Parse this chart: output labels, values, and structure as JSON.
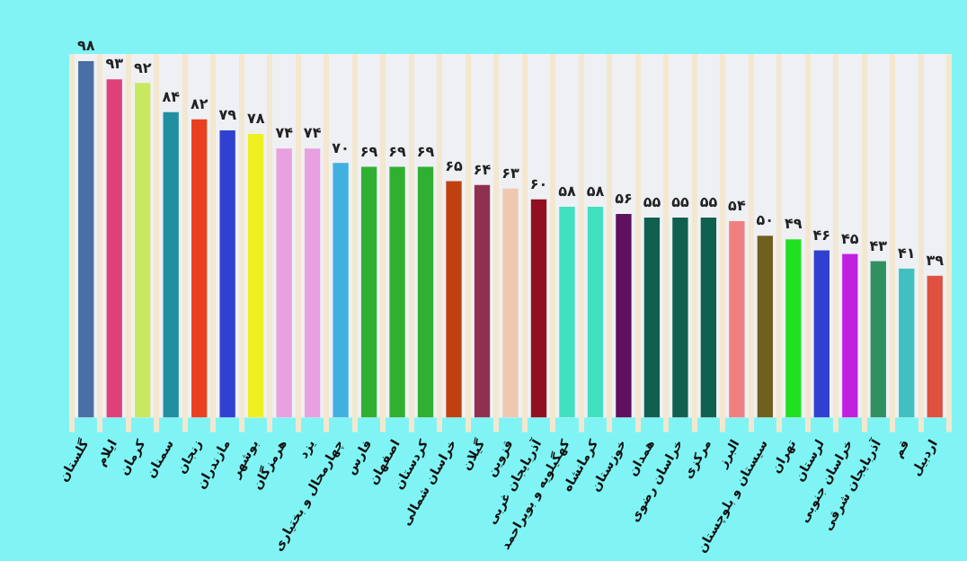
{
  "chart_data": {
    "type": "bar",
    "categories": [
      "گلستان",
      "ایلام",
      "کرمان",
      "سمنان",
      "زنجان",
      "مازندران",
      "بوشهر",
      "هرمزگان",
      "یزد",
      "چهارمحال و بختیاری",
      "فارس",
      "اصفهان",
      "کردستان",
      "خراسان شمالی",
      "گیلان",
      "قزوین",
      "آذربایجان غربی",
      "کهگیلویه و بویراحمد",
      "کرمانشاه",
      "خوزستان",
      "همدان",
      "خراسان رضوی",
      "مرکزی",
      "البرز",
      "سیستان و بلوچستان",
      "تهران",
      "لرستان",
      "خراسان جنوبی",
      "آذربایجان شرقی",
      "قم",
      "اردبیل"
    ],
    "values": [
      98,
      93,
      92,
      84,
      82,
      79,
      78,
      74,
      74,
      70,
      69,
      69,
      69,
      65,
      64,
      63,
      60,
      58,
      58,
      56,
      55,
      55,
      55,
      54,
      50,
      49,
      46,
      45,
      43,
      41,
      39
    ],
    "value_labels": [
      "۹۸",
      "۹۳",
      "۹۲",
      "۸۴",
      "۸۲",
      "۷۹",
      "۷۸",
      "۷۴",
      "۷۴",
      "۷۰",
      "۶۹",
      "۶۹",
      "۶۹",
      "۶۵",
      "۶۴",
      "۶۳",
      "۶۰",
      "۵۸",
      "۵۸",
      "۵۶",
      "۵۵",
      "۵۵",
      "۵۵",
      "۵۴",
      "۵۰",
      "۴۹",
      "۴۶",
      "۴۵",
      "۴۳",
      "۴۱",
      "۳۹"
    ],
    "colors": [
      "#4a6fa5",
      "#e0407a",
      "#c8e860",
      "#2090a0",
      "#e84020",
      "#3040d0",
      "#f0f020",
      "#e8a0e0",
      "#e8a0e0",
      "#40b0e0",
      "#30b030",
      "#30b030",
      "#30b030",
      "#c04010",
      "#903050",
      "#f0c8b0",
      "#901020",
      "#40e0c0",
      "#40e0c0",
      "#601060",
      "#106050",
      "#106050",
      "#106050",
      "#f08080",
      "#706020",
      "#20e020",
      "#3040d0",
      "#c020e0",
      "#309060",
      "#40c0c0",
      "#e05040"
    ],
    "grid": "x",
    "tick_labels": "x"
  }
}
